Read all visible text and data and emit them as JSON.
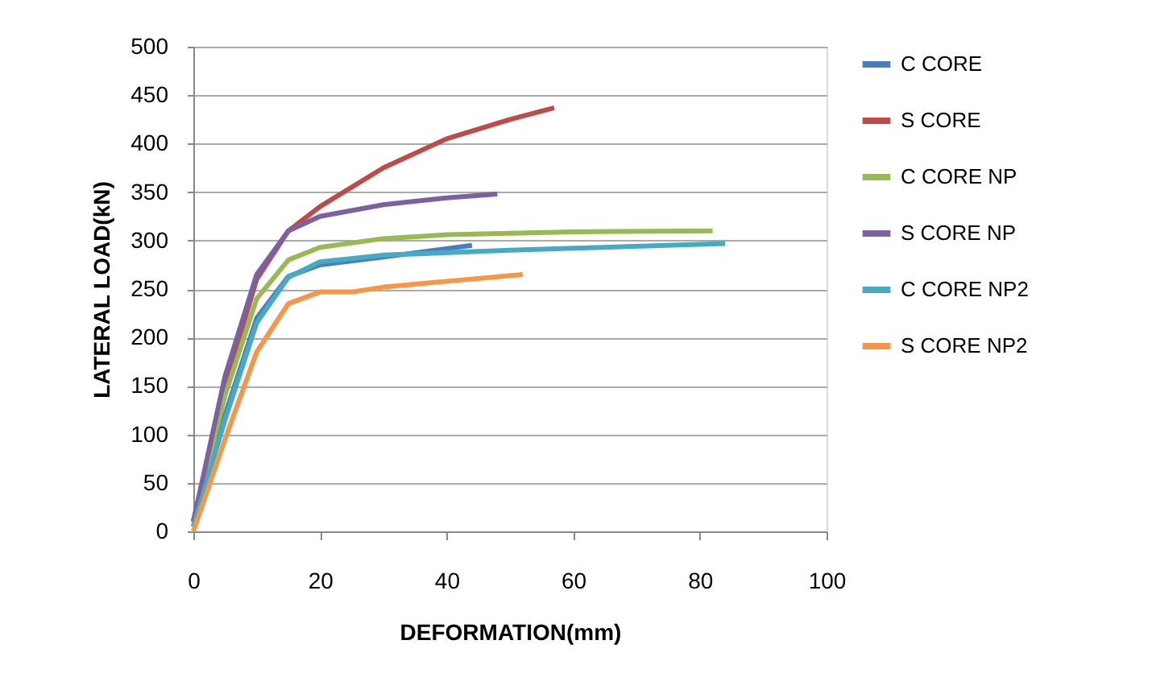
{
  "chart_data": {
    "type": "line",
    "xlabel": "DEFORMATION(mm)",
    "ylabel": "LATERAL LOAD(kN)",
    "xlim": [
      0,
      100
    ],
    "xticks": [
      0,
      20,
      40,
      60,
      80,
      100
    ],
    "ylim": [
      0,
      500
    ],
    "yticks": [
      0,
      50,
      100,
      150,
      200,
      250,
      300,
      350,
      400,
      450,
      500
    ],
    "grid": "y",
    "legend": "right",
    "marker": "none",
    "line_style": "solid",
    "series": [
      {
        "name": "C CORE",
        "color": "#4a7ebb",
        "x": [
          0,
          5,
          10,
          15,
          20,
          30,
          44
        ],
        "values": [
          5,
          120,
          220,
          263,
          275,
          283,
          295
        ]
      },
      {
        "name": "S CORE",
        "color": "#be4b48",
        "x": [
          0,
          5,
          10,
          15,
          20,
          30,
          40,
          50,
          57
        ],
        "values": [
          10,
          150,
          260,
          310,
          335,
          375,
          405,
          425,
          437
        ]
      },
      {
        "name": "C CORE NP",
        "color": "#98b954",
        "x": [
          0,
          5,
          10,
          15,
          20,
          30,
          40,
          60,
          82
        ],
        "values": [
          10,
          140,
          240,
          280,
          293,
          302,
          306,
          309,
          310
        ]
      },
      {
        "name": "S CORE NP",
        "color": "#7d60a0",
        "x": [
          0,
          5,
          10,
          15,
          20,
          30,
          40,
          48
        ],
        "values": [
          10,
          160,
          265,
          310,
          325,
          337,
          344,
          348
        ]
      },
      {
        "name": "C CORE NP2",
        "color": "#46aac5",
        "x": [
          0,
          5,
          10,
          15,
          20,
          30,
          50,
          84
        ],
        "values": [
          5,
          115,
          215,
          262,
          278,
          285,
          290,
          297
        ]
      },
      {
        "name": "S CORE NP2",
        "color": "#f79646",
        "x": [
          0,
          5,
          10,
          15,
          20,
          25,
          30,
          40,
          52
        ],
        "values": [
          0,
          95,
          185,
          235,
          247,
          247,
          252,
          258,
          265
        ]
      }
    ]
  }
}
